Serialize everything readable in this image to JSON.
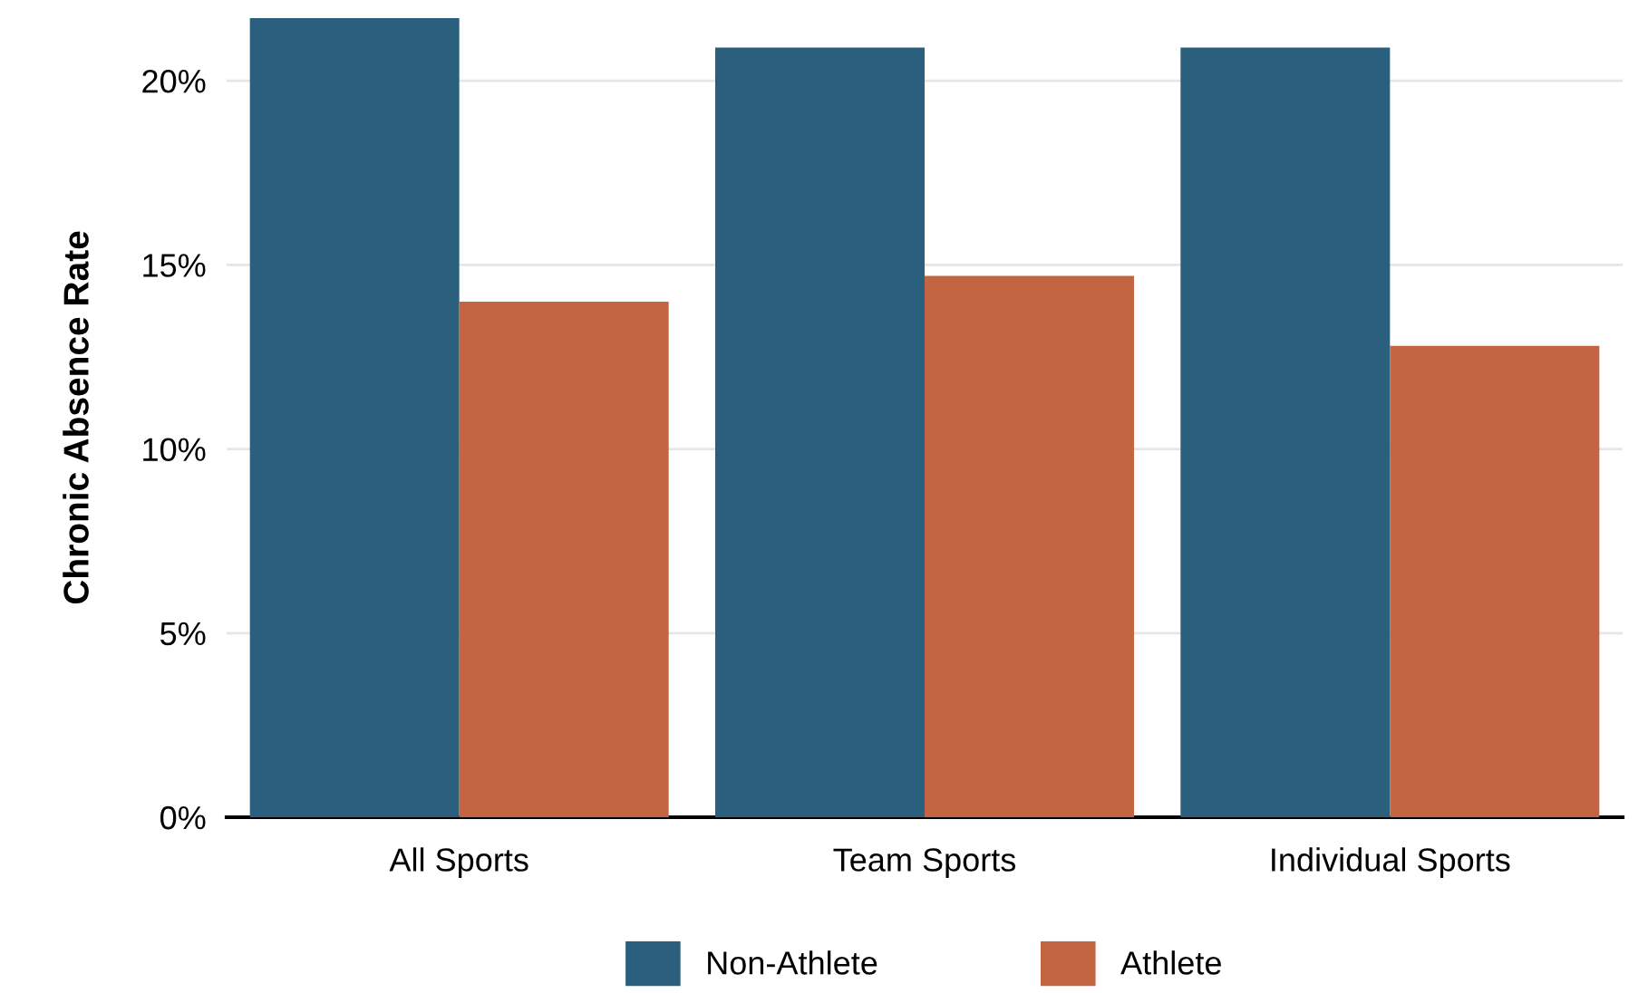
{
  "chart_data": {
    "type": "bar",
    "ylabel": "Chronic Absence Rate",
    "categories": [
      "All Sports",
      "Team Sports",
      "Individual Sports"
    ],
    "series": [
      {
        "name": "Non-Athlete",
        "color": "#2a5f7e",
        "values": [
          21.7,
          20.9,
          20.9
        ]
      },
      {
        "name": "Athlete",
        "color": "#c36543",
        "values": [
          14.0,
          14.7,
          12.8
        ]
      }
    ],
    "ylim": [
      0,
      21.7
    ],
    "yticks": [
      {
        "value": 0,
        "label": "0%"
      },
      {
        "value": 5,
        "label": "5%"
      },
      {
        "value": 10,
        "label": "10%"
      },
      {
        "value": 15,
        "label": "15%"
      },
      {
        "value": 20,
        "label": "20%"
      }
    ],
    "grid": "y",
    "legend": "bottom"
  }
}
